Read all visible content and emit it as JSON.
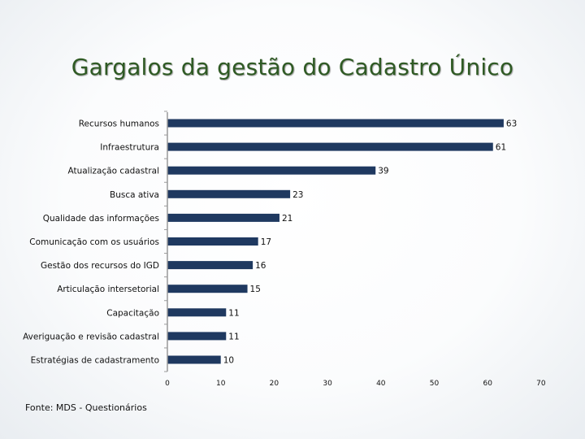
{
  "title": "Gargalos da gestão do Cadastro Único",
  "source": "Fonte: MDS - Questionários",
  "colors": {
    "bar": "#1f3960",
    "title": "#2f5a24",
    "axis": "#9a9a9a"
  },
  "chart_data": {
    "type": "bar",
    "orientation": "horizontal",
    "categories": [
      "Recursos humanos",
      "Infraestrutura",
      "Atualização cadastral",
      "Busca ativa",
      "Qualidade das informações",
      "Comunicação com os usuários",
      "Gestão dos recursos do IGD",
      "Articulação intersetorial",
      "Capacitação",
      "Averiguação e revisão cadastral",
      "Estratégias de cadastramento"
    ],
    "values": [
      63,
      61,
      39,
      23,
      21,
      17,
      16,
      15,
      11,
      11,
      10
    ],
    "xlim": [
      0,
      70
    ],
    "xticks": [
      0,
      10,
      20,
      30,
      40,
      50,
      60,
      70
    ],
    "grid": false,
    "legend": "none"
  }
}
